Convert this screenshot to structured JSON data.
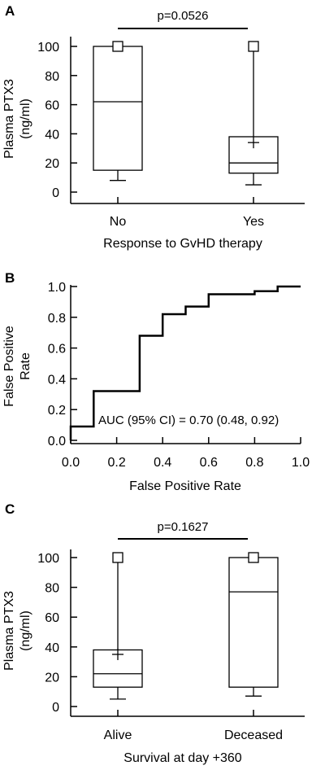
{
  "chart_data": [
    {
      "panel": "A",
      "type": "box",
      "ylabel": "Plasma PTX3 (ng/ml)",
      "ylabel_lines": [
        "Plasma PTX3",
        "(ng/ml)"
      ],
      "xlabel": "Response to GvHD therapy",
      "yticks": [
        0,
        20,
        40,
        60,
        80,
        100
      ],
      "ylim": [
        0,
        100
      ],
      "annotation": "p=0.0526",
      "categories": [
        "No",
        "Yes"
      ],
      "boxes": [
        {
          "category": "No",
          "whisker_low": 8,
          "q1": 15,
          "median": 62,
          "q3": 100,
          "whisker_high": 100,
          "mean": null,
          "outlier": 100
        },
        {
          "category": "Yes",
          "whisker_low": 5,
          "q1": 13,
          "median": 20,
          "q3": 38,
          "whisker_high": 100,
          "mean": 34,
          "outlier": 100
        }
      ]
    },
    {
      "panel": "B",
      "type": "line",
      "ylabel": "False Positive Rate",
      "ylabel_lines": [
        "False Positive",
        "Rate"
      ],
      "xlabel": "False Positive Rate",
      "xticks": [
        0.0,
        0.2,
        0.4,
        0.6,
        0.8,
        1.0
      ],
      "yticks": [
        0.0,
        0.2,
        0.4,
        0.6,
        0.8,
        1.0
      ],
      "xlim": [
        0,
        1
      ],
      "ylim": [
        0,
        1
      ],
      "annotation": "AUC (95% CI) = 0.70 (0.48, 0.92)",
      "series": [
        {
          "x": [
            0.0,
            0.0,
            0.1,
            0.1,
            0.3,
            0.3,
            0.4,
            0.4,
            0.5,
            0.5,
            0.6,
            0.6,
            0.8,
            0.8,
            0.9,
            0.9,
            1.0
          ],
          "y": [
            0.0,
            0.09,
            0.09,
            0.32,
            0.32,
            0.68,
            0.68,
            0.82,
            0.82,
            0.87,
            0.87,
            0.95,
            0.95,
            0.97,
            0.97,
            1.0,
            1.0
          ]
        }
      ]
    },
    {
      "panel": "C",
      "type": "box",
      "ylabel": "Plasma PTX3 (ng/ml)",
      "ylabel_lines": [
        "Plasma PTX3",
        "(ng/ml)"
      ],
      "xlabel": "Survival at day +360",
      "yticks": [
        0,
        20,
        40,
        60,
        80,
        100
      ],
      "ylim": [
        0,
        100
      ],
      "annotation": "p=0.1627",
      "categories": [
        "Alive",
        "Deceased"
      ],
      "boxes": [
        {
          "category": "Alive",
          "whisker_low": 5,
          "q1": 13,
          "median": 22,
          "q3": 38,
          "whisker_high": 100,
          "mean": 35,
          "outlier": 100
        },
        {
          "category": "Deceased",
          "whisker_low": 7,
          "q1": 13,
          "median": 77,
          "q3": 100,
          "whisker_high": 100,
          "mean": null,
          "outlier": 100
        }
      ]
    }
  ]
}
